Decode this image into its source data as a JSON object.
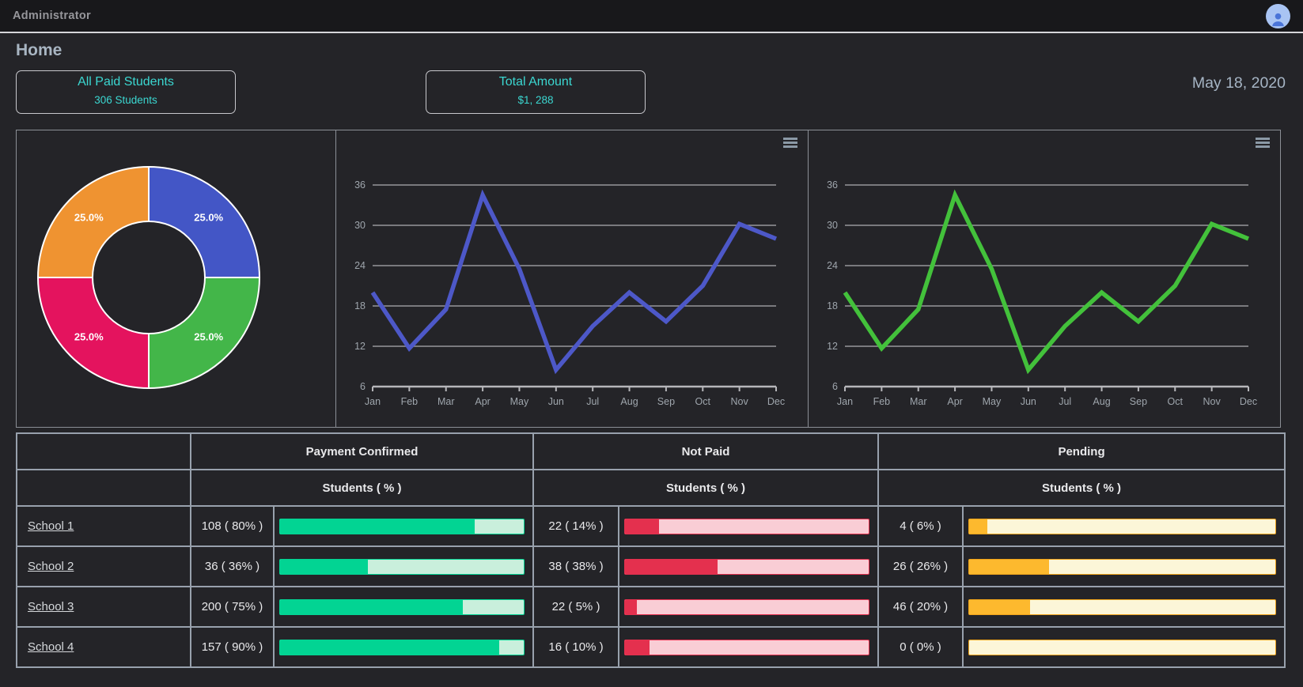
{
  "top_bar": {
    "title": "Administrator",
    "avatar": "user-avatar"
  },
  "page": {
    "title": "Home",
    "date": "May 18, 2020"
  },
  "cards": [
    {
      "title": "All Paid Students",
      "value": "306 Students"
    },
    {
      "title": "Total Amount",
      "value": "$1, 288"
    }
  ],
  "colors": {
    "accent_teal": "#3bd7d1",
    "donut": [
      "#4356c6",
      "#43b649",
      "#e4135e",
      "#ef9331"
    ],
    "line_blue": "#4d58c8",
    "line_green": "#43c13b",
    "bar_confirmed": {
      "fill": "#02d493",
      "track": "#c9efdc"
    },
    "bar_not_paid": {
      "fill": "#e4304e",
      "track": "#f9cdd5"
    },
    "bar_pending": {
      "fill": "#fdb92e",
      "track": "#fcf6d8",
      "border": "#f0a31a"
    }
  },
  "chart_data": [
    {
      "type": "pie",
      "style": "donut",
      "slices": [
        {
          "label": "25.0%",
          "value": 25,
          "color": "#4356c6"
        },
        {
          "label": "25.0%",
          "value": 25,
          "color": "#43b649"
        },
        {
          "label": "25.0%",
          "value": 25,
          "color": "#e4135e"
        },
        {
          "label": "25.0%",
          "value": 25,
          "color": "#ef9331"
        }
      ],
      "legend": false
    },
    {
      "type": "line",
      "x": [
        "Jan",
        "Feb",
        "Mar",
        "Apr",
        "May",
        "Jun",
        "Jul",
        "Aug",
        "Sep",
        "Oct",
        "Nov",
        "Dec"
      ],
      "series": [
        {
          "name": "monthly",
          "values": [
            20,
            11.7,
            17.5,
            34.5,
            23.5,
            8.5,
            15,
            20,
            15.7,
            21,
            30.2,
            28
          ]
        }
      ],
      "color": "#4d58c8",
      "ylim": [
        6,
        36
      ],
      "yticks": [
        6,
        12,
        18,
        24,
        30,
        36
      ],
      "grid": true,
      "legend": false
    },
    {
      "type": "line",
      "x": [
        "Jan",
        "Feb",
        "Mar",
        "Apr",
        "May",
        "Jun",
        "Jul",
        "Aug",
        "Sep",
        "Oct",
        "Nov",
        "Dec"
      ],
      "series": [
        {
          "name": "monthly",
          "values": [
            20,
            11.7,
            17.5,
            34.5,
            23.5,
            8.5,
            15,
            20,
            15.7,
            21,
            30.2,
            28
          ]
        }
      ],
      "color": "#43c13b",
      "ylim": [
        6,
        36
      ],
      "yticks": [
        6,
        12,
        18,
        24,
        30,
        36
      ],
      "grid": true,
      "legend": false
    }
  ],
  "table": {
    "groups": [
      "Payment Confirmed",
      "Not Paid",
      "Pending"
    ],
    "subheader": "Students ( % )",
    "rows": [
      {
        "school": "School 1",
        "confirmed": {
          "label": "108 ( 80% )",
          "pct": 80
        },
        "not_paid": {
          "label": "22 ( 14% )",
          "pct": 14
        },
        "pending": {
          "label": "4 ( 6% )",
          "pct": 6
        }
      },
      {
        "school": "School 2",
        "confirmed": {
          "label": "36 ( 36% )",
          "pct": 36
        },
        "not_paid": {
          "label": "38 ( 38% )",
          "pct": 38
        },
        "pending": {
          "label": "26 ( 26% )",
          "pct": 26
        }
      },
      {
        "school": "School 3",
        "confirmed": {
          "label": "200 ( 75% )",
          "pct": 75
        },
        "not_paid": {
          "label": "22 ( 5% )",
          "pct": 5
        },
        "pending": {
          "label": "46 ( 20% )",
          "pct": 20
        }
      },
      {
        "school": "School 4",
        "confirmed": {
          "label": "157 ( 90% )",
          "pct": 90
        },
        "not_paid": {
          "label": "16 ( 10% )",
          "pct": 10
        },
        "pending": {
          "label": "0 ( 0% )",
          "pct": 0
        }
      }
    ]
  }
}
